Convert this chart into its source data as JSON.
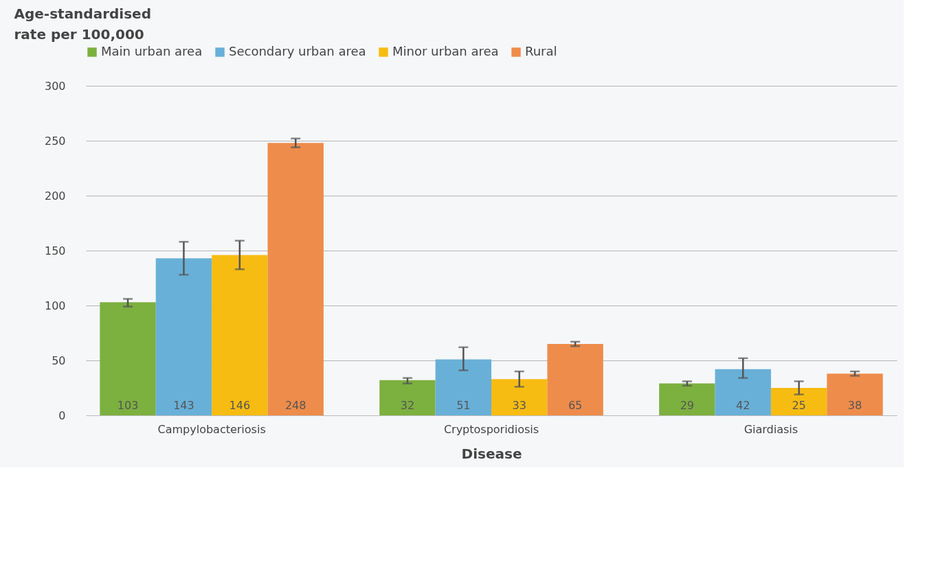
{
  "chart_data": {
    "type": "bar",
    "xlabel": "Disease",
    "ylabel": "Age-standardised rate per 100,000",
    "categories": [
      "Campylobacteriosis",
      "Cryptosporidiosis",
      "Giardiasis"
    ],
    "series": [
      {
        "name": "Main urban area",
        "color": "#7cb03f",
        "values": [
          103,
          32,
          29
        ],
        "errors": [
          [
            99,
            106
          ],
          [
            29,
            34
          ],
          [
            27,
            31
          ]
        ]
      },
      {
        "name": "Secondary urban area",
        "color": "#68b0d8",
        "values": [
          143,
          51,
          42
        ],
        "errors": [
          [
            128,
            158
          ],
          [
            41,
            62
          ],
          [
            34,
            52
          ]
        ]
      },
      {
        "name": "Minor urban area",
        "color": "#f7bc12",
        "values": [
          146,
          33,
          25
        ],
        "errors": [
          [
            133,
            159
          ],
          [
            26,
            40
          ],
          [
            19,
            31
          ]
        ]
      },
      {
        "name": "Rural",
        "color": "#ee8c4b",
        "values": [
          248,
          65,
          38
        ],
        "errors": [
          [
            244,
            252
          ],
          [
            63,
            67
          ],
          [
            36,
            40
          ]
        ]
      }
    ],
    "ylim": [
      0,
      300
    ],
    "yticks": [
      0,
      50,
      100,
      150,
      200,
      250,
      300
    ],
    "grid": "y",
    "legend": "top",
    "data_labels": true
  }
}
